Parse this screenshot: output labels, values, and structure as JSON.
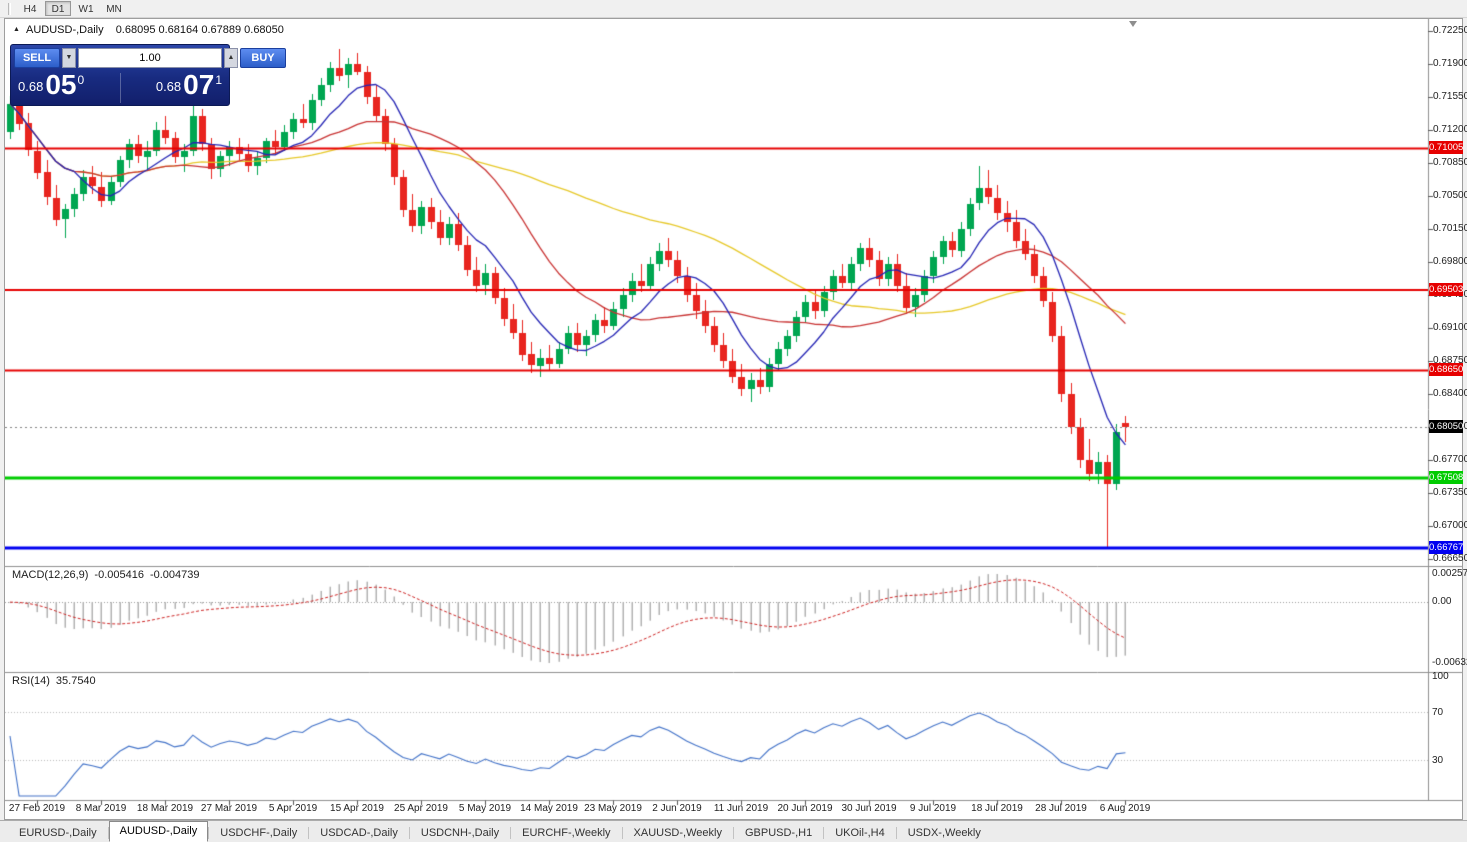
{
  "toolbar": {
    "timeframes": [
      {
        "label": "H4",
        "active": false
      },
      {
        "label": "D1",
        "active": true
      },
      {
        "label": "W1",
        "active": false
      },
      {
        "label": "MN",
        "active": false
      }
    ]
  },
  "icons": {
    "collapse_arrow": "▲",
    "spinner_down": "▼",
    "spinner_up": "▲"
  },
  "chart": {
    "symbol_title": "AUDUSD-,Daily",
    "ohlc_text": "0.68095 0.68164 0.67889 0.68050",
    "trade_panel": {
      "sell_label": "SELL",
      "buy_label": "BUY",
      "volume": "1.00",
      "sell_price": {
        "prefix": "0.68",
        "big": "05",
        "sup": "0"
      },
      "buy_price": {
        "prefix": "0.68",
        "big": "07",
        "sup": "1"
      }
    },
    "candle_colors": {
      "up": "#00A651",
      "down": "#E8251F"
    },
    "moving_averages": [
      {
        "period": 8,
        "color": "#2424B4"
      },
      {
        "period": 20,
        "color": "#C83232"
      },
      {
        "period": 50,
        "color": "#E6C828"
      }
    ],
    "hlines": [
      {
        "price": 0.71005,
        "label": "0.71005",
        "color": "#E60000",
        "thickness": 2
      },
      {
        "price": 0.69503,
        "label": "0.69503",
        "color": "#E60000",
        "thickness": 2
      },
      {
        "price": 0.6865,
        "label": "0.68650",
        "color": "#E60000",
        "thickness": 2
      },
      {
        "price": 0.67508,
        "label": "0.67508",
        "color": "#00CC00",
        "thickness": 3
      },
      {
        "price": 0.66767,
        "label": "0.66767",
        "color": "#0000F0",
        "thickness": 3
      }
    ],
    "current_price": {
      "price": 0.6805,
      "label": "0.68050",
      "bg": "#000000"
    },
    "axis_labels": [
      "0.72250",
      "0.71900",
      "0.71550",
      "0.71200",
      "0.70850",
      "0.70500",
      "0.70150",
      "0.69800",
      "0.69450",
      "0.69100",
      "0.68750",
      "0.68400",
      "0.68050",
      "0.67700",
      "0.67350",
      "0.67000",
      "0.66650"
    ],
    "date_labels": [
      "27 Feb 2019",
      "8 Mar 2019",
      "18 Mar 2019",
      "27 Mar 2019",
      "5 Apr 2019",
      "15 Apr 2019",
      "25 Apr 2019",
      "5 May 2019",
      "14 May 2019",
      "23 May 2019",
      "2 Jun 2019",
      "11 Jun 2019",
      "20 Jun 2019",
      "30 Jun 2019",
      "9 Jul 2019",
      "18 Jul 2019",
      "28 Jul 2019",
      "6 Aug 2019"
    ],
    "candles": [
      [
        0.7118,
        0.7156,
        0.711,
        0.7148
      ],
      [
        0.7148,
        0.7153,
        0.712,
        0.7127
      ],
      [
        0.7127,
        0.7138,
        0.7092,
        0.7098
      ],
      [
        0.7098,
        0.7108,
        0.7068,
        0.7075
      ],
      [
        0.7075,
        0.7088,
        0.704,
        0.7048
      ],
      [
        0.7048,
        0.7062,
        0.7018,
        0.7025
      ],
      [
        0.7025,
        0.7042,
        0.7005,
        0.7036
      ],
      [
        0.7036,
        0.7058,
        0.7028,
        0.7052
      ],
      [
        0.7052,
        0.7078,
        0.7045,
        0.707
      ],
      [
        0.707,
        0.7082,
        0.7052,
        0.706
      ],
      [
        0.706,
        0.7075,
        0.7038,
        0.7045
      ],
      [
        0.7045,
        0.707,
        0.704,
        0.7065
      ],
      [
        0.7065,
        0.7092,
        0.706,
        0.7088
      ],
      [
        0.7088,
        0.711,
        0.708,
        0.7105
      ],
      [
        0.7105,
        0.7115,
        0.7085,
        0.7092
      ],
      [
        0.7092,
        0.7108,
        0.7078,
        0.7098
      ],
      [
        0.7098,
        0.7128,
        0.7092,
        0.712
      ],
      [
        0.712,
        0.7135,
        0.7105,
        0.7112
      ],
      [
        0.7112,
        0.7118,
        0.7085,
        0.7092
      ],
      [
        0.7092,
        0.7105,
        0.7075,
        0.7098
      ],
      [
        0.7098,
        0.715,
        0.7092,
        0.7135
      ],
      [
        0.7135,
        0.7142,
        0.7098,
        0.7105
      ],
      [
        0.7105,
        0.7112,
        0.7068,
        0.7078
      ],
      [
        0.7078,
        0.7098,
        0.707,
        0.7092
      ],
      [
        0.7092,
        0.7108,
        0.7082,
        0.7102
      ],
      [
        0.7102,
        0.7112,
        0.7088,
        0.7095
      ],
      [
        0.7095,
        0.7105,
        0.7075,
        0.7082
      ],
      [
        0.7082,
        0.7098,
        0.7072,
        0.709
      ],
      [
        0.709,
        0.7112,
        0.7085,
        0.7108
      ],
      [
        0.7108,
        0.712,
        0.7095,
        0.7102
      ],
      [
        0.7102,
        0.7125,
        0.7098,
        0.7118
      ],
      [
        0.7118,
        0.7138,
        0.711,
        0.7132
      ],
      [
        0.7132,
        0.7148,
        0.7122,
        0.7128
      ],
      [
        0.7128,
        0.7158,
        0.712,
        0.7152
      ],
      [
        0.7152,
        0.7175,
        0.7145,
        0.7168
      ],
      [
        0.7168,
        0.7192,
        0.716,
        0.7186
      ],
      [
        0.7186,
        0.7206,
        0.7172,
        0.7178
      ],
      [
        0.7178,
        0.7196,
        0.7165,
        0.719
      ],
      [
        0.719,
        0.7202,
        0.7178,
        0.7182
      ],
      [
        0.7182,
        0.7188,
        0.7148,
        0.7155
      ],
      [
        0.7155,
        0.7168,
        0.7128,
        0.7135
      ],
      [
        0.7135,
        0.7142,
        0.7098,
        0.7105
      ],
      [
        0.7105,
        0.7112,
        0.7062,
        0.707
      ],
      [
        0.707,
        0.7078,
        0.7028,
        0.7035
      ],
      [
        0.7035,
        0.7052,
        0.7012,
        0.7018
      ],
      [
        0.7018,
        0.7045,
        0.701,
        0.7038
      ],
      [
        0.7038,
        0.7048,
        0.7015,
        0.7022
      ],
      [
        0.7022,
        0.7035,
        0.6998,
        0.7005
      ],
      [
        0.7005,
        0.7028,
        0.6998,
        0.702
      ],
      [
        0.702,
        0.7032,
        0.6992,
        0.6998
      ],
      [
        0.6998,
        0.7008,
        0.6965,
        0.6972
      ],
      [
        0.6972,
        0.6985,
        0.6948,
        0.6955
      ],
      [
        0.6955,
        0.6978,
        0.6945,
        0.6968
      ],
      [
        0.6968,
        0.6975,
        0.6935,
        0.6942
      ],
      [
        0.6942,
        0.6952,
        0.6912,
        0.692
      ],
      [
        0.692,
        0.6935,
        0.6898,
        0.6905
      ],
      [
        0.6905,
        0.6918,
        0.6875,
        0.6882
      ],
      [
        0.6882,
        0.6895,
        0.6862,
        0.687
      ],
      [
        0.687,
        0.6888,
        0.6858,
        0.6878
      ],
      [
        0.6878,
        0.6892,
        0.6865,
        0.6872
      ],
      [
        0.6872,
        0.6895,
        0.6868,
        0.6888
      ],
      [
        0.6888,
        0.6912,
        0.6882,
        0.6905
      ],
      [
        0.6905,
        0.6915,
        0.6885,
        0.6892
      ],
      [
        0.6892,
        0.6908,
        0.688,
        0.6902
      ],
      [
        0.6902,
        0.6925,
        0.6895,
        0.6918
      ],
      [
        0.6918,
        0.6932,
        0.6905,
        0.6912
      ],
      [
        0.6912,
        0.6938,
        0.6908,
        0.693
      ],
      [
        0.693,
        0.6952,
        0.6922,
        0.6945
      ],
      [
        0.6945,
        0.6968,
        0.6938,
        0.696
      ],
      [
        0.696,
        0.6978,
        0.6948,
        0.6955
      ],
      [
        0.6955,
        0.6985,
        0.695,
        0.6978
      ],
      [
        0.6978,
        0.7,
        0.697,
        0.6992
      ],
      [
        0.6992,
        0.7005,
        0.6975,
        0.6982
      ],
      [
        0.6982,
        0.6992,
        0.6958,
        0.6965
      ],
      [
        0.6965,
        0.6975,
        0.6938,
        0.6945
      ],
      [
        0.6945,
        0.6958,
        0.692,
        0.6928
      ],
      [
        0.6928,
        0.694,
        0.6905,
        0.6912
      ],
      [
        0.6912,
        0.6922,
        0.6885,
        0.6892
      ],
      [
        0.6892,
        0.6905,
        0.6868,
        0.6875
      ],
      [
        0.6875,
        0.6888,
        0.6852,
        0.6858
      ],
      [
        0.6858,
        0.6872,
        0.6838,
        0.6845
      ],
      [
        0.6845,
        0.6862,
        0.6832,
        0.6855
      ],
      [
        0.6855,
        0.6868,
        0.684,
        0.6848
      ],
      [
        0.6848,
        0.6878,
        0.6842,
        0.6872
      ],
      [
        0.6872,
        0.6895,
        0.6865,
        0.6888
      ],
      [
        0.6888,
        0.6908,
        0.688,
        0.6902
      ],
      [
        0.6902,
        0.6928,
        0.6895,
        0.6922
      ],
      [
        0.6922,
        0.6945,
        0.6915,
        0.6938
      ],
      [
        0.6938,
        0.695,
        0.692,
        0.6928
      ],
      [
        0.6928,
        0.6955,
        0.6922,
        0.6948
      ],
      [
        0.6948,
        0.6972,
        0.694,
        0.6965
      ],
      [
        0.6965,
        0.6978,
        0.6952,
        0.6958
      ],
      [
        0.6958,
        0.6985,
        0.695,
        0.6978
      ],
      [
        0.6978,
        0.7,
        0.697,
        0.6995
      ],
      [
        0.6995,
        0.7005,
        0.6975,
        0.6982
      ],
      [
        0.6982,
        0.6992,
        0.6955,
        0.6962
      ],
      [
        0.6962,
        0.6985,
        0.6955,
        0.6978
      ],
      [
        0.6978,
        0.6988,
        0.6948,
        0.6955
      ],
      [
        0.6955,
        0.6968,
        0.6925,
        0.6932
      ],
      [
        0.6932,
        0.6952,
        0.6922,
        0.6945
      ],
      [
        0.6945,
        0.6972,
        0.6938,
        0.6965
      ],
      [
        0.6965,
        0.6992,
        0.6958,
        0.6985
      ],
      [
        0.6985,
        0.7008,
        0.6978,
        0.7002
      ],
      [
        0.7002,
        0.7012,
        0.6985,
        0.6992
      ],
      [
        0.6992,
        0.7022,
        0.6985,
        0.7015
      ],
      [
        0.7015,
        0.7048,
        0.7008,
        0.7042
      ],
      [
        0.7042,
        0.7082,
        0.7035,
        0.7058
      ],
      [
        0.7058,
        0.7078,
        0.7042,
        0.7048
      ],
      [
        0.7048,
        0.7062,
        0.7025,
        0.7032
      ],
      [
        0.7032,
        0.7045,
        0.7012,
        0.7022
      ],
      [
        0.7022,
        0.7035,
        0.6995,
        0.7002
      ],
      [
        0.7002,
        0.7015,
        0.6982,
        0.6988
      ],
      [
        0.6988,
        0.6998,
        0.6958,
        0.6965
      ],
      [
        0.6965,
        0.6975,
        0.6932,
        0.6938
      ],
      [
        0.6938,
        0.6948,
        0.6895,
        0.6902
      ],
      [
        0.6902,
        0.6912,
        0.6832,
        0.684
      ],
      [
        0.684,
        0.6852,
        0.6798,
        0.6805
      ],
      [
        0.6805,
        0.6815,
        0.6762,
        0.677
      ],
      [
        0.677,
        0.6792,
        0.6748,
        0.6755
      ],
      [
        0.6755,
        0.6778,
        0.6745,
        0.6768
      ],
      [
        0.6768,
        0.6775,
        0.6677,
        0.6745
      ],
      [
        0.6745,
        0.6808,
        0.6738,
        0.68
      ],
      [
        0.68095,
        0.68164,
        0.67889,
        0.6805
      ]
    ]
  },
  "macd": {
    "label": "MACD(12,26,9)",
    "value_fast": "-0.005416",
    "value_signal": "-0.004739",
    "fast": 12,
    "slow": 26,
    "signal": 9,
    "axis": [
      "0.002574",
      "0.00",
      "-0.006326"
    ],
    "histogram_color": "#B2B2B2",
    "signal_color": "#CC2222"
  },
  "rsi": {
    "label": "RSI(14)",
    "value": "35.7540",
    "period": 14,
    "levels": [
      70,
      30
    ],
    "axis": [
      "100",
      "70",
      "30"
    ],
    "line_color": "#4272C8"
  },
  "tabs": [
    {
      "label": "EURUSD-,Daily",
      "active": false
    },
    {
      "label": "AUDUSD-,Daily",
      "active": true
    },
    {
      "label": "USDCHF-,Daily",
      "active": false
    },
    {
      "label": "USDCAD-,Daily",
      "active": false
    },
    {
      "label": "USDCNH-,Daily",
      "active": false
    },
    {
      "label": "EURCHF-,Weekly",
      "active": false
    },
    {
      "label": "XAUUSD-,Weekly",
      "active": false
    },
    {
      "label": "GBPUSD-,H1",
      "active": false
    },
    {
      "label": "UKOil-,H4",
      "active": false
    },
    {
      "label": "USDX-,Weekly",
      "active": false
    }
  ]
}
